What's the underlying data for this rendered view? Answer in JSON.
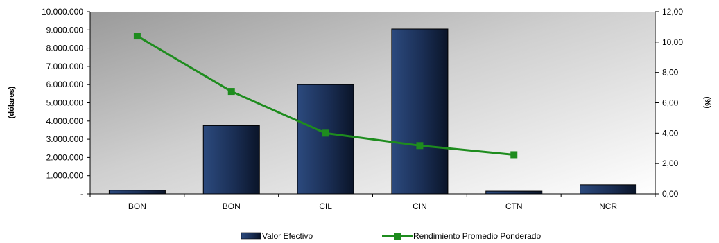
{
  "chart_data": {
    "type": "bar",
    "categories": [
      "BON",
      "BON",
      "CIL",
      "CIN",
      "CTN",
      "NCR"
    ],
    "series": [
      {
        "name": "Valor Efectivo",
        "type": "bar",
        "axis": "left",
        "color": "#1a2e54",
        "values": [
          200000,
          3750000,
          6000000,
          9050000,
          150000,
          500000
        ]
      },
      {
        "name": "Rendimiento Promedio Ponderado",
        "type": "line",
        "axis": "right",
        "color": "#1e8c1e",
        "values": [
          10.4,
          6.75,
          4.0,
          3.18,
          2.58,
          null
        ]
      }
    ],
    "ylabel": "(dólares)",
    "y2label": "(%)",
    "ylim": [
      0,
      10000000
    ],
    "y2lim": [
      0,
      12
    ],
    "yticks": [
      "-",
      "1.000.000",
      "2.000.000",
      "3.000.000",
      "4.000.000",
      "5.000.000",
      "6.000.000",
      "7.000.000",
      "8.000.000",
      "9.000.000",
      "10.000.000"
    ],
    "y2ticks": [
      "0,00",
      "2,00",
      "4,00",
      "6,00",
      "8,00",
      "10,00",
      "12,00"
    ],
    "legend": "bottom",
    "grid": false
  }
}
